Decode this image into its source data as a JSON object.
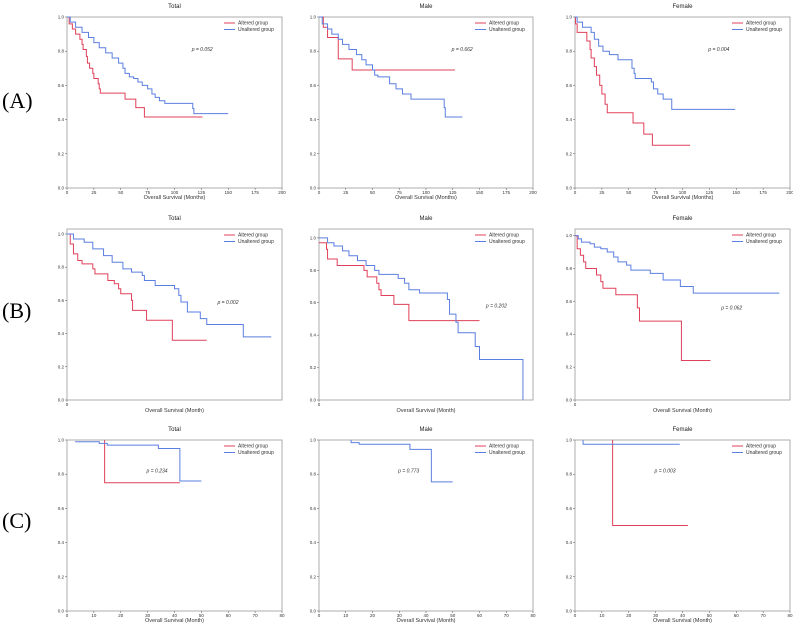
{
  "row_labels": [
    "(A)",
    "(B)",
    "(C)"
  ],
  "colors": {
    "altered": "#e0405a",
    "unaltered": "#5b7fe0",
    "axis": "#999999"
  },
  "chart_data": [
    {
      "type": "line",
      "row": "(A)",
      "title": "Total",
      "xlabel": "Overall Survival (Months)",
      "ylabel": "",
      "xlim": [
        0,
        200
      ],
      "ylim": [
        0,
        1
      ],
      "xticks": [
        "0",
        "25",
        "50",
        "75",
        "100",
        "125",
        "150",
        "175",
        "200"
      ],
      "xtick_values": [
        0,
        25,
        50,
        75,
        100,
        125,
        150,
        175,
        200
      ],
      "yticks": [
        "0.0",
        "0.2",
        "0.4",
        "0.6",
        "0.8",
        "1.0"
      ],
      "legend": [
        "Altered group",
        "Unaltered group"
      ],
      "legend_position": "top-right",
      "annotation": "p = 0.052",
      "series": [
        {
          "name": "Altered group",
          "x": [
            0,
            2,
            5,
            8,
            12,
            14,
            15,
            18,
            19,
            21,
            24,
            25,
            29,
            30,
            31,
            54,
            64,
            72,
            126
          ],
          "y": [
            1,
            0.96,
            0.93,
            0.9,
            0.87,
            0.84,
            0.81,
            0.77,
            0.73,
            0.7,
            0.67,
            0.64,
            0.61,
            0.58,
            0.555,
            0.52,
            0.47,
            0.415,
            0.415
          ]
        },
        {
          "name": "Unaltered group",
          "x": [
            0,
            3,
            8,
            14,
            20,
            25,
            30,
            36,
            42,
            48,
            52,
            54,
            58,
            62,
            66,
            70,
            75,
            79,
            82,
            86,
            91,
            117,
            118,
            150
          ],
          "y": [
            1,
            0.97,
            0.94,
            0.91,
            0.88,
            0.85,
            0.82,
            0.79,
            0.76,
            0.73,
            0.7,
            0.67,
            0.65,
            0.64,
            0.62,
            0.6,
            0.58,
            0.55,
            0.53,
            0.51,
            0.495,
            0.465,
            0.435,
            0.435
          ]
        }
      ]
    },
    {
      "type": "line",
      "row": "(A)",
      "title": "Male",
      "xlabel": "Overall Survival (Months)",
      "ylabel": "",
      "xlim": [
        0,
        200
      ],
      "ylim": [
        0,
        1
      ],
      "xticks": [
        "0",
        "25",
        "50",
        "75",
        "100",
        "125",
        "150",
        "175",
        "200"
      ],
      "xtick_values": [
        0,
        25,
        50,
        75,
        100,
        125,
        150,
        175,
        200
      ],
      "yticks": [
        "0.0",
        "0.2",
        "0.4",
        "0.6",
        "0.8",
        "1.0"
      ],
      "legend": [
        "Altered group",
        "Unaltered group"
      ],
      "legend_position": "top-right",
      "annotation": "p = 0.662",
      "series": [
        {
          "name": "Altered group",
          "x": [
            0,
            4,
            8,
            18,
            31,
            127
          ],
          "y": [
            1,
            0.94,
            0.88,
            0.755,
            0.69,
            0.69
          ]
        },
        {
          "name": "Unaltered group",
          "x": [
            0,
            3,
            8,
            12,
            18,
            22,
            28,
            35,
            40,
            44,
            50,
            52,
            55,
            66,
            72,
            78,
            86,
            117,
            118,
            134
          ],
          "y": [
            1,
            0.96,
            0.93,
            0.9,
            0.87,
            0.84,
            0.81,
            0.78,
            0.75,
            0.72,
            0.69,
            0.66,
            0.65,
            0.61,
            0.58,
            0.55,
            0.52,
            0.47,
            0.415,
            0.415
          ]
        }
      ]
    },
    {
      "type": "line",
      "row": "(A)",
      "title": "Female",
      "xlabel": "Overall Survival (Months)",
      "ylabel": "",
      "xlim": [
        0,
        200
      ],
      "ylim": [
        0,
        1
      ],
      "xticks": [
        "0",
        "25",
        "50",
        "75",
        "100",
        "125",
        "150",
        "175",
        "200"
      ],
      "xtick_values": [
        0,
        25,
        50,
        75,
        100,
        125,
        150,
        175,
        200
      ],
      "yticks": [
        "0.0",
        "0.2",
        "0.4",
        "0.6",
        "0.8",
        "1.0"
      ],
      "legend": [
        "Altered group",
        "Unaltered group"
      ],
      "legend_position": "top-right",
      "annotation": "p = 0.004",
      "series": [
        {
          "name": "Altered group",
          "x": [
            0,
            0.5,
            2,
            11,
            14,
            15,
            18,
            20,
            23,
            25,
            28,
            30,
            54,
            64,
            72,
            107
          ],
          "y": [
            1,
            0.96,
            0.91,
            0.86,
            0.81,
            0.76,
            0.71,
            0.66,
            0.6,
            0.55,
            0.49,
            0.44,
            0.38,
            0.315,
            0.25,
            0.25
          ]
        },
        {
          "name": "Unaltered group",
          "x": [
            0,
            2,
            7,
            15,
            18,
            22,
            26,
            32,
            40,
            53,
            55,
            56,
            71,
            73,
            77,
            82,
            90,
            149
          ],
          "y": [
            1,
            0.97,
            0.94,
            0.91,
            0.87,
            0.83,
            0.8,
            0.78,
            0.75,
            0.7,
            0.67,
            0.64,
            0.62,
            0.58,
            0.55,
            0.52,
            0.46,
            0.46
          ]
        }
      ]
    },
    {
      "type": "line",
      "row": "(B)",
      "title": "Total",
      "xlabel": "Overall Survival (Month)",
      "ylabel": "",
      "xlim": [
        0,
        100
      ],
      "ylim": [
        0,
        1.03
      ],
      "xticks": [
        "0"
      ],
      "xtick_values": [
        0
      ],
      "yticks": [
        "0.0",
        "0.2",
        "0.4",
        "0.6",
        "0.8",
        "1.0"
      ],
      "legend": [
        "Altered group",
        "Unaltered group"
      ],
      "legend_position": "top-right",
      "annotation": "p = 0.002",
      "series": [
        {
          "name": "Altered group",
          "x": [
            0,
            1.5,
            3,
            5,
            7,
            12,
            13,
            19,
            22,
            24,
            25,
            30,
            30.5,
            37,
            49,
            65
          ],
          "y": [
            1,
            0.94,
            0.88,
            0.84,
            0.82,
            0.79,
            0.76,
            0.72,
            0.7,
            0.67,
            0.64,
            0.6,
            0.54,
            0.48,
            0.36,
            0.36
          ]
        },
        {
          "name": "Unaltered group",
          "x": [
            0,
            3,
            8,
            12,
            17,
            21,
            26,
            30,
            35,
            36,
            41,
            50,
            52,
            53,
            56,
            62,
            65,
            82,
            95
          ],
          "y": [
            1,
            0.97,
            0.95,
            0.91,
            0.87,
            0.83,
            0.79,
            0.77,
            0.75,
            0.72,
            0.69,
            0.67,
            0.63,
            0.59,
            0.53,
            0.49,
            0.455,
            0.38,
            0.38
          ]
        }
      ]
    },
    {
      "type": "line",
      "row": "(B)",
      "title": "Male",
      "xlabel": "Overall Survival (Month)",
      "ylabel": "",
      "xlim": [
        0,
        100
      ],
      "ylim": [
        0,
        1.055
      ],
      "xticks": [
        "0"
      ],
      "xtick_values": [
        0
      ],
      "yticks": [
        "0.0",
        "0.2",
        "0.4",
        "0.6",
        "0.8",
        "1.0"
      ],
      "legend": [
        "Altered group",
        "Unaltered group"
      ],
      "legend_position": "top-right",
      "annotation": "p = 0.202",
      "series": [
        {
          "name": "Altered group",
          "x": [
            0,
            3.5,
            4,
            8.5,
            21,
            22.5,
            27,
            28,
            29,
            35,
            42,
            75
          ],
          "y": [
            0.97,
            0.93,
            0.87,
            0.83,
            0.8,
            0.76,
            0.72,
            0.68,
            0.645,
            0.59,
            0.49,
            0.49
          ]
        },
        {
          "name": "Unaltered group",
          "x": [
            0,
            4,
            7,
            11,
            14,
            18,
            22,
            26,
            28,
            37,
            40,
            42,
            47,
            60,
            61,
            64,
            65,
            73,
            75,
            95.3,
            95.3
          ],
          "y": [
            1,
            0.97,
            0.95,
            0.92,
            0.89,
            0.86,
            0.83,
            0.8,
            0.775,
            0.75,
            0.72,
            0.68,
            0.66,
            0.62,
            0.53,
            0.48,
            0.415,
            0.33,
            0.25,
            0,
            0
          ]
        }
      ]
    },
    {
      "type": "line",
      "row": "(B)",
      "title": "Female",
      "xlabel": "Overall Survival (Month)",
      "ylabel": "",
      "xlim": [
        0,
        100
      ],
      "ylim": [
        0,
        1.04
      ],
      "xticks": [
        "0"
      ],
      "xtick_values": [
        0
      ],
      "yticks": [
        "0.0",
        "0.2",
        "0.4",
        "0.6",
        "0.8",
        "1.0"
      ],
      "legend": [
        "Altered group",
        "Unaltered group"
      ],
      "legend_position": "top-right",
      "annotation": "p = 0.062",
      "series": [
        {
          "name": "Altered group",
          "x": [
            0,
            1,
            2.5,
            4,
            5,
            10,
            12,
            13,
            19,
            29,
            30,
            49.5,
            63
          ],
          "y": [
            1,
            0.92,
            0.88,
            0.84,
            0.8,
            0.76,
            0.72,
            0.68,
            0.64,
            0.56,
            0.48,
            0.24,
            0.24
          ]
        },
        {
          "name": "Unaltered group",
          "x": [
            0,
            1.5,
            3,
            7,
            9,
            12,
            15,
            18,
            20,
            24,
            26,
            35,
            41,
            49,
            55,
            95
          ],
          "y": [
            1,
            0.98,
            0.96,
            0.95,
            0.93,
            0.92,
            0.9,
            0.87,
            0.84,
            0.82,
            0.79,
            0.77,
            0.73,
            0.69,
            0.65,
            0.65
          ]
        }
      ]
    },
    {
      "type": "line",
      "row": "(C)",
      "title": "Total",
      "xlabel": "Overall Survival (Month)",
      "ylabel": "",
      "xlim": [
        0,
        80
      ],
      "ylim": [
        0,
        1
      ],
      "xticks": [
        "0",
        "10",
        "20",
        "30",
        "40",
        "50",
        "60",
        "70",
        "80"
      ],
      "xtick_values": [
        0,
        10,
        20,
        30,
        40,
        50,
        60,
        70,
        80
      ],
      "yticks": [
        "0.0",
        "0.2",
        "0.4",
        "0.6",
        "0.8",
        "1.0"
      ],
      "legend": [
        "Altered group",
        "Unaltered group"
      ],
      "legend_position": "top-right",
      "annotation": "p = 0.234",
      "series": [
        {
          "name": "Altered group",
          "x": [
            14,
            14,
            42
          ],
          "y": [
            1,
            0.75,
            0.75
          ]
        },
        {
          "name": "Unaltered group",
          "x": [
            3,
            12,
            15,
            34,
            42,
            50
          ],
          "y": [
            0.99,
            0.98,
            0.97,
            0.95,
            0.76,
            0.76
          ]
        }
      ]
    },
    {
      "type": "line",
      "row": "(C)",
      "title": "Male",
      "xlabel": "Overall Survival (Month)",
      "ylabel": "",
      "xlim": [
        0,
        80
      ],
      "ylim": [
        0,
        1
      ],
      "xticks": [
        "0",
        "10",
        "20",
        "30",
        "40",
        "50",
        "60",
        "70",
        "80"
      ],
      "xtick_values": [
        0,
        10,
        20,
        30,
        40,
        50,
        60,
        70,
        80
      ],
      "yticks": [
        "0.0",
        "0.2",
        "0.4",
        "0.6",
        "0.8",
        "1.0"
      ],
      "legend": [
        "Altered group",
        "Unaltered group"
      ],
      "legend_position": "top-right",
      "annotation": "p = 0.773",
      "series": [
        {
          "name": "Altered group",
          "x": [],
          "y": []
        },
        {
          "name": "Unaltered group",
          "x": [
            12,
            12,
            15,
            34,
            42,
            50
          ],
          "y": [
            1,
            0.985,
            0.975,
            0.945,
            0.755,
            0.755
          ]
        }
      ]
    },
    {
      "type": "line",
      "row": "(C)",
      "title": "Female",
      "xlabel": "Overall Survival (Month)",
      "ylabel": "",
      "xlim": [
        0,
        80
      ],
      "ylim": [
        0,
        1
      ],
      "xticks": [
        "0",
        "10",
        "20",
        "30",
        "40",
        "50",
        "60",
        "70",
        "80"
      ],
      "xtick_values": [
        0,
        10,
        20,
        30,
        40,
        50,
        60,
        70,
        80
      ],
      "yticks": [
        "0.0",
        "0.2",
        "0.4",
        "0.6",
        "0.8",
        "1.0"
      ],
      "legend": [
        "Altered group",
        "Unaltered group"
      ],
      "legend_position": "top-right",
      "annotation": "p = 0.003",
      "series": [
        {
          "name": "Altered group",
          "x": [
            14,
            14,
            42
          ],
          "y": [
            1,
            0.5,
            0.5
          ]
        },
        {
          "name": "Unaltered group",
          "x": [
            3,
            3,
            39
          ],
          "y": [
            1,
            0.975,
            0.975
          ]
        }
      ]
    }
  ]
}
